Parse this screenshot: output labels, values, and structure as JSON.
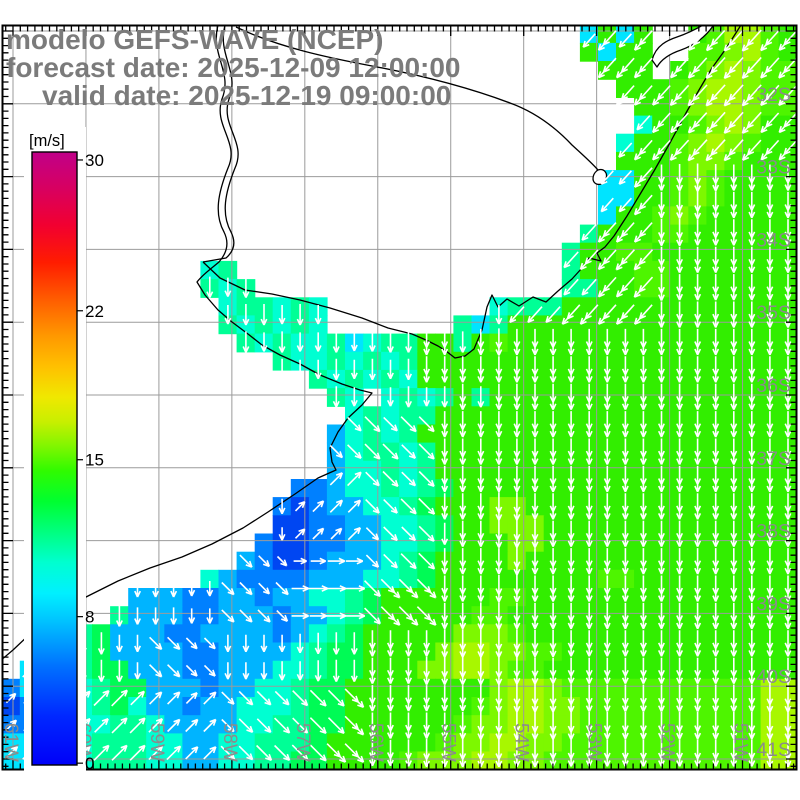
{
  "header": {
    "line1": "modelo GEFS-WAVE (NCEP)",
    "line2": "forecast date: 2025-12-09 12:00:00",
    "line3": "valid date: 2025-12-19 09:00:00"
  },
  "colorbar": {
    "unit_label": "[m/s]",
    "min": 0,
    "max": 30,
    "tick_labels": [
      "30",
      "22",
      "15",
      "8",
      "0"
    ],
    "gradient_stops": [
      [
        0.0,
        "#0000f8"
      ],
      [
        0.08,
        "#0028ff"
      ],
      [
        0.16,
        "#0070ff"
      ],
      [
        0.24,
        "#00c8ff"
      ],
      [
        0.28,
        "#00f0ff"
      ],
      [
        0.33,
        "#00ffd0"
      ],
      [
        0.38,
        "#00ff80"
      ],
      [
        0.43,
        "#00ff30"
      ],
      [
        0.48,
        "#30fb00"
      ],
      [
        0.52,
        "#80f600"
      ],
      [
        0.56,
        "#c8ef00"
      ],
      [
        0.6,
        "#f0e800"
      ],
      [
        0.65,
        "#ffc000"
      ],
      [
        0.7,
        "#ff9800"
      ],
      [
        0.76,
        "#ff5c00"
      ],
      [
        0.82,
        "#ff1c00"
      ],
      [
        0.88,
        "#f20030"
      ],
      [
        0.94,
        "#d80060"
      ],
      [
        1.0,
        "#c00089"
      ]
    ]
  },
  "axes": {
    "lat_labels": [
      "32S",
      "33S",
      "34S",
      "35S",
      "36S",
      "37S",
      "38S",
      "39S",
      "40S",
      "41S"
    ],
    "lon_labels": [
      "61W",
      "60W",
      "59W",
      "58W",
      "57W",
      "56W",
      "55W",
      "54W",
      "53W",
      "52W",
      "51W"
    ]
  },
  "colors": {
    "title_text": "#7b7b7b",
    "axis_text": "#8b8b8b",
    "grid_line": "#9b9b9b",
    "coast_line": "#000000",
    "frame": "#000000",
    "arrow": "#ffffff",
    "land": "#ffffff",
    "colorbar_text": "#000000"
  },
  "wave_field": {
    "palette": {
      "a": "#00b4ff",
      "b": "#0080ff",
      "c": "#00e4ff",
      "d": "#0046f2",
      "e": "#0062ff",
      "f": "#00ffd2",
      "g": "#00ff96",
      "h": "#00fb55",
      "i": "#32ee00",
      "j": "#4ef500",
      "k": "#7df800",
      "l": "#a8f700",
      "m": "#d2f500"
    },
    "rows_rle": [
      "32.,1c,1i,1c,1i,2.,1i,1j,2l,1j,1i",
      "32.,1i,1c,2i,2.,2j,1k,1l,1j,1i",
      "33.,3i,1.,1i,1j,1k,1l,1k,2j",
      "34.,3i,1j,1k,2l,1k,2j",
      "35.,2i,1j,1k,2l,1k,2j",
      "35.,1f,2i,1j,1k,1l,1k,2i",
      "34.,1f,2i,1j,1k,1l,1k,1j,2i",
      "34.,3i,1j,2k,1j,3i",
      "33.,2c,2i,1j,1k,1j,4i",
      "33.,2c,2i,1j,1k,1j,4i",
      "33.,1c,2i,1j,1k,1j,5i",
      "32.,1g,3i,2j,6i",
      "31.,1g,2i,2j,8i",
      "11.,1f,1g,18.,1g,3i,2j,7i",
      "11.,1g,1f,1g,17.,2g,2i,2j,7i",
      "12.,1f,2g,1f,1g,1f,9.,1f,3g,13i",
      "12.,1g,1f,1g,1f,1g,1f,7.,1g,1c,1g,16i",
      "13.,1g,1f,1g,2f,1g,1c,1f,2g,2i,1g,1i,1j,16i",
      "15.,1g,2f,1g,1f,1g,1f,1g,2i,19i",
      "17.,1g,1f,1g,1f,1g,1f,2i,19i",
      "18.,1g,1f,1.,1f,1g,1f,1g,1i,1g,17i",
      "19.,1f,1g,1f,1g,1g,1i,19i",
      "18.,1a,1f,1g,1f,1g,2i,19i",
      "18.,1a,1f,2g,1f,1g,1i,19i",
      "18.,1a,2f,1g,1f,1g,1i,19i",
      "16.,2b,1a,2f,1g,1f,1g,1h,19i",
      "15.,1b,1d,1b,2a,2f,1g,1h,3i,2k,15i",
      "15.,2d,2b,2a,2f,1g,1h,2i,3k,14i",
      "14.,1b,2d,2b,2a,2f,1g,1h,3i,2k,14i",
      "13.,1a,1b,2d,1b,3a,1f,1g,1h,4i,1k,15i",
      "11.,1f,1a,4b,3a,2f,1g,1h,9i,2j,9i",
      "7.,3a,2b,2a,1b,2a,2f,1g,1h,6i,2j,15i",
      "6.,1g,3a,2b,3a,1b,2a,1f,1g,1h,5i,2j,16i",
      "3.,1c,1g,1h,3a,2b,4a,1b,1a,1f,1g,1h,5i,3k,1j,15i",
      "2.,1c,1f,1g,1h,4a,2b,4a,1f,1g,2h,4i,1k,2l,2k,2j,13i",
      "1.,2c,1f,1g,2h,3a,2b,3a,2f,1g,2h,3i,2k,2l,1k,2j,14i",
      "1b,2c,2f,1g,2h,3a,1b,2a,2f,1g,2h,8i,1k,2l,1k,11j,2l",
      "1d,1b,2c,1f,1g,1h,1f,2a,1b,2a,3f,1g,2h,7i,1j,1k,2l,2k,10j,2l",
      "2b,2c,2f,2g,1f,4a,2f,2g,2h,6i,1j,2k,2l,2k,10j,2l",
      "3c,2f,3g,2f,2a,2f,3g,1h,6i,1j,2k,2l,2k,11j,2l",
      "2c,3f,3g,2f,2a,2f,2g,2h,4i,1j,3k,2l,2k,12j,2l"
    ],
    "arrow_direction_grid": [
      "ssssssssccc",
      "ssssssssccc",
      "sssssssscss",
      "sssssssccss",
      "sssssssssss",
      "ssssbbsssss",
      "ssssabsssss",
      "sssbebsssss",
      "asbssssssss",
      "aaabbssssss"
    ],
    "arrow_length_by_level": {
      "d": 13,
      "b": 15,
      "a": 17,
      "c": 18,
      "e": 18,
      "f": 19,
      "g": 21,
      "h": 22,
      "i": 26,
      "j": 27,
      "k": 28,
      "l": 28,
      "m": 29
    }
  }
}
